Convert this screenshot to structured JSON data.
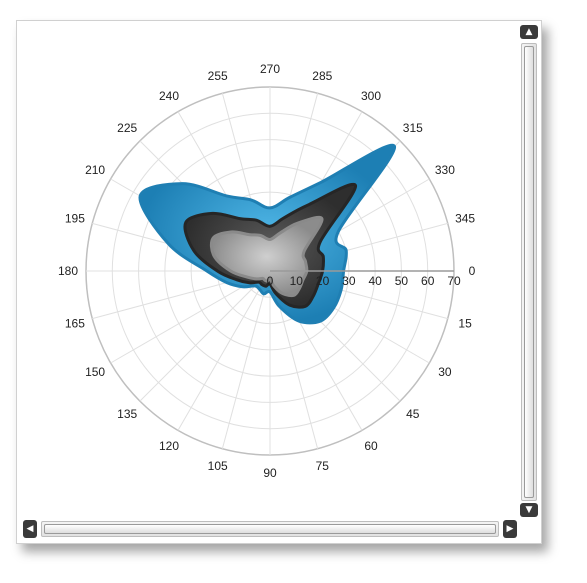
{
  "chart_data": {
    "type": "polar-area",
    "radial_axis": {
      "min": 0,
      "max": 70,
      "ticks": [
        "0",
        "10",
        "20",
        "30",
        "40",
        "50",
        "60",
        "70"
      ],
      "tick_angle_deg": 0
    },
    "angular_axis": {
      "ticks": [
        "0",
        "15",
        "30",
        "45",
        "60",
        "75",
        "90",
        "105",
        "120",
        "135",
        "150",
        "165",
        "180",
        "195",
        "210",
        "225",
        "240",
        "255",
        "270",
        "285",
        "300",
        "315",
        "330",
        "345"
      ],
      "direction": "clockwise"
    },
    "grid": true,
    "angles": [
      0,
      15,
      30,
      45,
      60,
      75,
      90,
      105,
      120,
      135,
      150,
      165,
      180,
      195,
      210,
      225,
      240,
      255,
      270,
      285,
      300,
      315,
      330,
      345
    ],
    "series": [
      {
        "color": "#2a8fc2",
        "values": [
          28,
          28,
          28,
          27,
          22,
          14,
          8,
          9,
          8,
          8,
          12,
          17,
          24,
          40,
          57,
          47,
          33,
          28,
          24,
          29,
          39,
          67,
          30,
          30
        ]
      },
      {
        "color": "#3a3a3a",
        "values": [
          20,
          19,
          19,
          19,
          15,
          9,
          5,
          6,
          6,
          6,
          9,
          13,
          20,
          30,
          37,
          31,
          23,
          20,
          17,
          21,
          29,
          46,
          22,
          21
        ]
      },
      {
        "color": "#9a9a9a",
        "values": [
          14,
          13,
          13,
          13,
          10,
          6,
          3,
          4,
          4,
          4,
          6,
          9,
          15,
          22,
          25,
          21,
          16,
          14,
          12,
          15,
          21,
          28,
          15,
          14
        ]
      }
    ]
  },
  "scrollbar": {
    "up_icon": "▲",
    "down_icon": "▼",
    "left_icon": "◀",
    "right_icon": "▶"
  }
}
